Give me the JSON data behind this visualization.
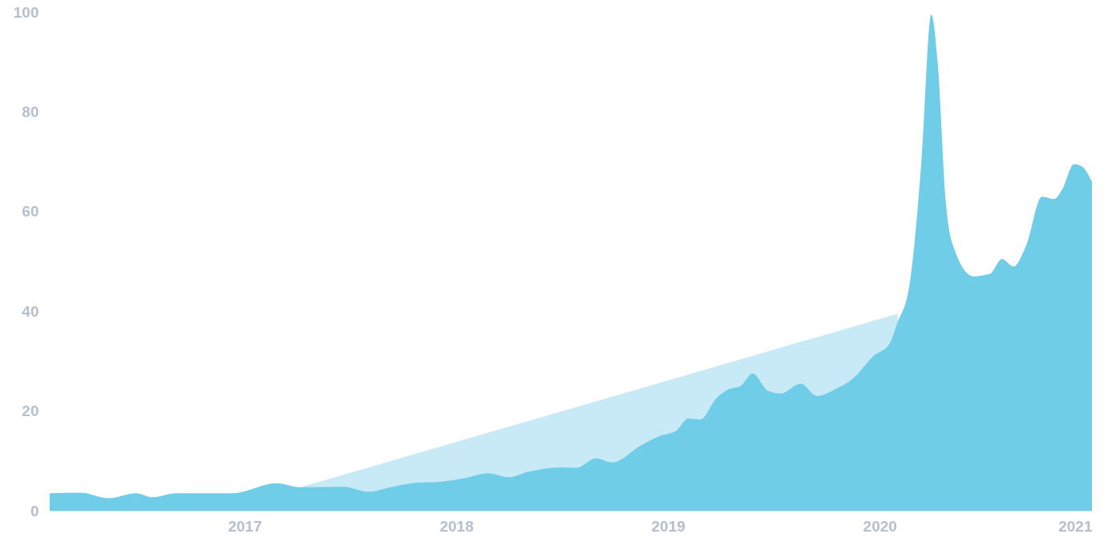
{
  "chart_data": {
    "type": "area",
    "x": [
      "2016-01-31",
      "2016-03-24",
      "2016-05-11",
      "2016-06-28",
      "2016-07-26",
      "2016-09-05",
      "2016-12-11",
      "2017-02-25",
      "2017-04-07",
      "2017-06-22",
      "2017-08-02",
      "2017-09-13",
      "2017-10-24",
      "2017-12-04",
      "2018-01-15",
      "2018-02-25",
      "2018-04-01",
      "2018-05-05",
      "2018-06-29",
      "2018-07-27",
      "2018-08-30",
      "2018-09-27",
      "2018-11-14",
      "2018-12-18",
      "2019-01-15",
      "2019-02-05",
      "2019-02-26",
      "2019-03-25",
      "2019-04-15",
      "2019-05-06",
      "2019-05-27",
      "2019-06-23",
      "2019-07-14",
      "2019-08-18",
      "2019-09-15",
      "2019-10-19",
      "2019-11-16",
      "2019-12-21",
      "2020-01-18",
      "2020-01-31",
      "2020-02-21",
      "2020-03-13",
      "2020-03-30",
      "2020-04-10",
      "2020-04-24",
      "2020-05-07",
      "2020-06-11",
      "2020-07-09",
      "2020-07-30",
      "2020-08-19",
      "2020-09-09",
      "2020-10-07",
      "2020-10-28",
      "2020-11-11",
      "2020-12-01",
      "2020-12-15",
      "2021-01-01"
    ],
    "series": [
      {
        "type": "area",
        "color": "#c8eaf7",
        "x": [
          "2017-04-07",
          "2020-02-01"
        ],
        "values": [
          4.7,
          39.5
        ]
      },
      {
        "color": "#70cde8",
        "values": [
          3.5,
          3.6,
          2.5,
          3.5,
          2.7,
          3.5,
          3.5,
          5.5,
          4.7,
          4.8,
          3.8,
          4.8,
          5.6,
          5.8,
          6.5,
          7.5,
          6.7,
          7.8,
          8.7,
          8.6,
          10.5,
          9.7,
          13,
          15,
          16,
          18.5,
          18.3,
          22.5,
          24.3,
          25,
          27.5,
          24,
          23.5,
          25.5,
          23,
          24.5,
          26.5,
          31,
          33.5,
          37.5,
          45,
          70,
          99.5,
          90,
          62,
          53,
          47,
          47.5,
          50.5,
          49,
          53,
          63,
          62.5,
          64.5,
          69.5,
          69,
          66
        ]
      }
    ],
    "xlim": [
      "2016-01-31",
      "2021-01-01"
    ],
    "xticks": [
      "2017",
      "2018",
      "2019",
      "2020",
      "2021"
    ],
    "ylim": [
      0,
      100
    ],
    "yticks": [
      0,
      20,
      40,
      60,
      80,
      100
    ]
  }
}
